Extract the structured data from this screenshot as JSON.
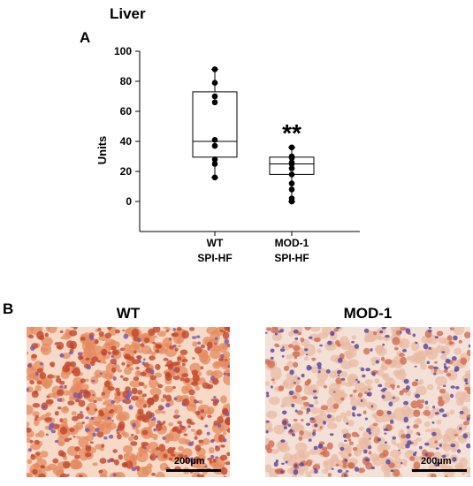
{
  "figure": {
    "title": "Liver",
    "panel_a_label": "A",
    "panel_b_label": "B"
  },
  "chart_data": {
    "type": "box",
    "ylabel": "Units",
    "ylim": [
      -20,
      100
    ],
    "yticks": [
      0,
      20,
      40,
      60,
      80,
      100
    ],
    "grid": false,
    "categories": [
      "WT\nSPI-HF",
      "MOD-1\nSPI-HF"
    ],
    "category_lines": [
      [
        "WT",
        "SPI-HF"
      ],
      [
        "MOD-1",
        "SPI-HF"
      ]
    ],
    "boxes": [
      {
        "category": "WT SPI-HF",
        "min": 16,
        "q1": 29.5,
        "median": 40,
        "q3": 73,
        "max": 88,
        "points": [
          88,
          79,
          70,
          66,
          41,
          37,
          28,
          25,
          16
        ]
      },
      {
        "category": "MOD-1 SPI-HF",
        "min": 0,
        "q1": 18,
        "median": 25,
        "q3": 29.5,
        "max": 36,
        "points": [
          36,
          30,
          29,
          26,
          25,
          22,
          18,
          12,
          8,
          2,
          0
        ]
      }
    ],
    "annotations": [
      {
        "text": "**",
        "category": "MOD-1 SPI-HF",
        "y": 44
      }
    ]
  },
  "micrographs": [
    {
      "title": "WT",
      "scale_bar": "200µm",
      "stain_colors": [
        "#e58a5e",
        "#c2462a",
        "#7c5aa8",
        "#f6d9c6"
      ]
    },
    {
      "title": "MOD-1",
      "scale_bar": "200µm",
      "stain_colors": [
        "#e9b9a2",
        "#d26c4f",
        "#5d4aa2",
        "#f3e1d8"
      ]
    }
  ]
}
